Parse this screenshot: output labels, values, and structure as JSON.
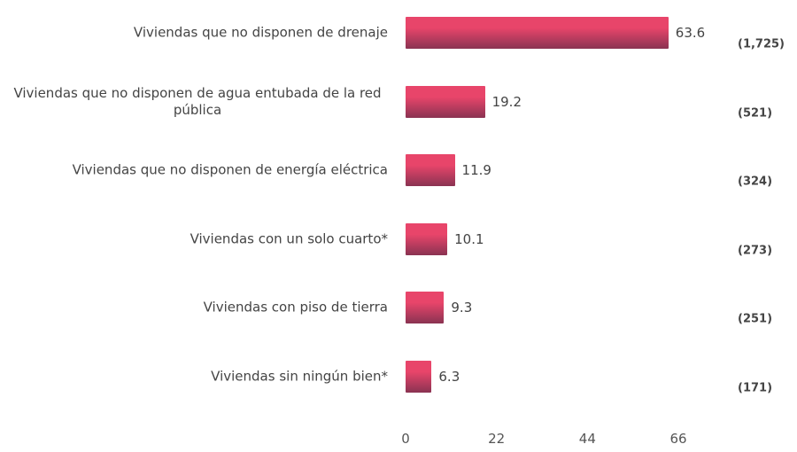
{
  "chart_data": {
    "type": "bar",
    "orientation": "horizontal",
    "categories": [
      "Viviendas que no disponen de drenaje",
      "Viviendas que no disponen de agua entubada de la red pública",
      "Viviendas que no disponen de energía eléctrica",
      "Viviendas con un solo cuarto*",
      "Viviendas con piso de tierra",
      "Viviendas sin ningún bien*"
    ],
    "values": [
      63.6,
      19.2,
      11.9,
      10.1,
      9.3,
      6.3
    ],
    "annotations": [
      "(1,725)",
      "(521)",
      "(324)",
      "(273)",
      "(251)",
      "(171)"
    ],
    "color": "#e8456a",
    "xlim": [
      0,
      66
    ],
    "xticks": [
      0,
      22,
      44,
      66
    ],
    "grid": false
  }
}
